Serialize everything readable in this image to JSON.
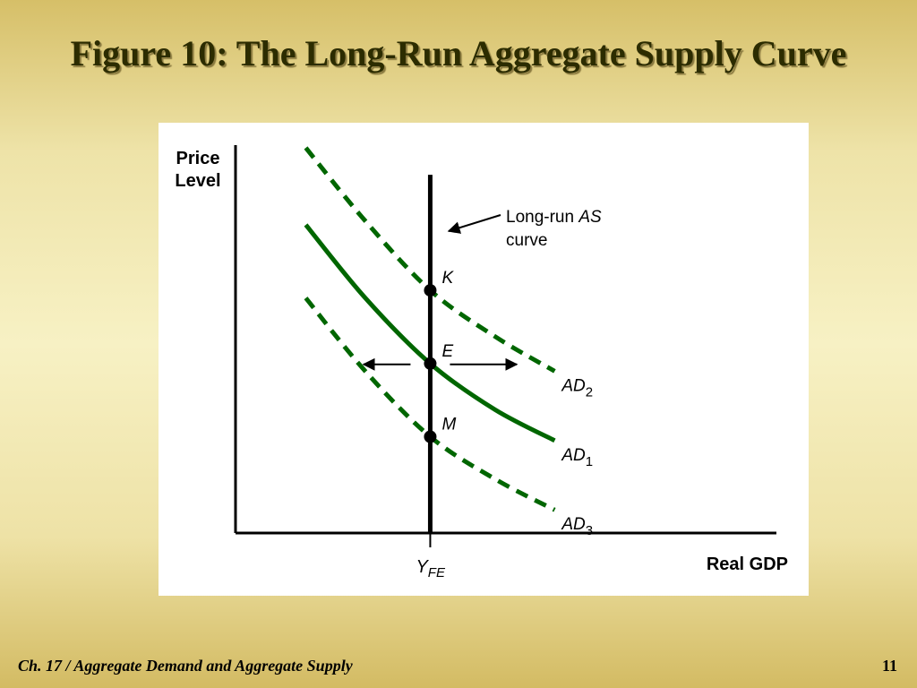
{
  "slide": {
    "title": "Figure 10: The Long-Run Aggregate Supply Curve",
    "footer_left": "Ch. 17 / Aggregate Demand and Aggregate Supply",
    "page_number": "11"
  },
  "colors": {
    "curve": "#006600",
    "axis": "#000000",
    "text": "#000000"
  },
  "chart_data": {
    "type": "line",
    "ylabel": [
      "Price",
      "Level"
    ],
    "xlabel": "Real GDP",
    "xlim": [
      0,
      10
    ],
    "ylim": [
      0,
      10
    ],
    "grid": false,
    "x_tick": {
      "value": 3.6,
      "label": "Y",
      "sub": "FE"
    },
    "lras": {
      "x": 3.6,
      "y_top": 9.3,
      "annotation": [
        "Long-run ",
        "AS",
        "curve"
      ]
    },
    "series": [
      {
        "name": "AD",
        "sub": "2",
        "style": "dashed",
        "points": [
          [
            1.3,
            10.0
          ],
          [
            2.4,
            8.1
          ],
          [
            3.6,
            6.3
          ],
          [
            4.8,
            5.1
          ],
          [
            5.9,
            4.2
          ]
        ]
      },
      {
        "name": "AD",
        "sub": "1",
        "style": "solid",
        "points": [
          [
            1.3,
            8.0
          ],
          [
            2.4,
            6.1
          ],
          [
            3.6,
            4.4
          ],
          [
            4.8,
            3.2
          ],
          [
            5.9,
            2.4
          ]
        ]
      },
      {
        "name": "AD",
        "sub": "3",
        "style": "dashed",
        "points": [
          [
            1.3,
            6.1
          ],
          [
            2.4,
            4.2
          ],
          [
            3.6,
            2.5
          ],
          [
            4.8,
            1.4
          ],
          [
            5.9,
            0.6
          ]
        ]
      }
    ],
    "points": [
      {
        "label": "K",
        "x": 3.6,
        "y": 6.3
      },
      {
        "label": "E",
        "x": 3.6,
        "y": 4.4
      },
      {
        "label": "M",
        "x": 3.6,
        "y": 2.5
      }
    ],
    "shift_arrows": {
      "y": 4.4,
      "left_to": 2.4,
      "right_to": 5.2
    }
  }
}
